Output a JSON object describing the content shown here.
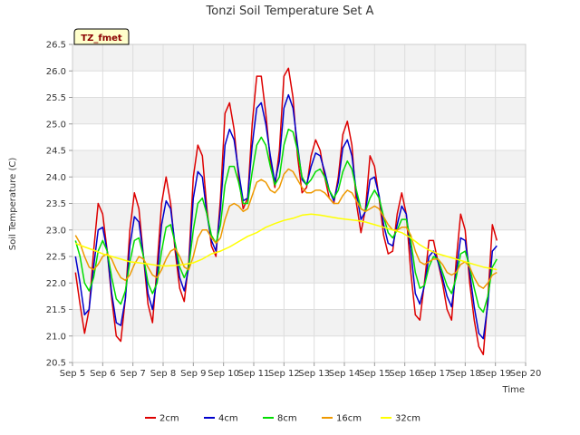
{
  "chart_data": {
    "type": "line",
    "title": "Tonzi Soil Temperature Set A",
    "xlabel": "Time",
    "ylabel": "Soil Temperature (C)",
    "tag": "TZ_fmet",
    "xlim": [
      5,
      20
    ],
    "ylim": [
      20.5,
      26.5
    ],
    "x_ticks": [
      5,
      6,
      7,
      8,
      9,
      10,
      11,
      12,
      13,
      14,
      15,
      16,
      17,
      18,
      19,
      20
    ],
    "x_tick_labels": [
      "Sep 5",
      "Sep 6",
      "Sep 7",
      "Sep 8",
      "Sep 9",
      "Sep 10",
      "Sep 11",
      "Sep 12",
      "Sep 13",
      "Sep 14",
      "Sep 15",
      "Sep 16",
      "Sep 17",
      "Sep 18",
      "Sep 19",
      "Sep 20"
    ],
    "y_ticks": [
      20.5,
      21.0,
      21.5,
      22.0,
      22.5,
      23.0,
      23.5,
      24.0,
      24.5,
      25.0,
      25.5,
      26.0,
      26.5
    ],
    "y_tick_labels": [
      "20.5",
      "21.0",
      "21.5",
      "22.0",
      "22.5",
      "23.0",
      "23.5",
      "24.0",
      "24.5",
      "25.0",
      "25.5",
      "26.0",
      "26.5"
    ],
    "grid": true,
    "legend_position": "bottom",
    "series": [
      {
        "name": "2cm",
        "color": "#dd0000",
        "x": [
          5.1,
          5.25,
          5.4,
          5.55,
          5.7,
          5.85,
          6.0,
          6.15,
          6.3,
          6.45,
          6.6,
          6.75,
          6.9,
          7.05,
          7.2,
          7.35,
          7.5,
          7.65,
          7.8,
          7.95,
          8.1,
          8.25,
          8.4,
          8.55,
          8.7,
          8.85,
          9.0,
          9.15,
          9.3,
          9.45,
          9.6,
          9.75,
          9.9,
          10.05,
          10.2,
          10.35,
          10.5,
          10.65,
          10.8,
          10.95,
          11.1,
          11.25,
          11.4,
          11.55,
          11.7,
          11.85,
          12.0,
          12.15,
          12.3,
          12.45,
          12.6,
          12.75,
          12.9,
          13.05,
          13.2,
          13.35,
          13.5,
          13.65,
          13.8,
          13.95,
          14.1,
          14.25,
          14.4,
          14.55,
          14.7,
          14.85,
          15.0,
          15.15,
          15.3,
          15.45,
          15.6,
          15.75,
          15.9,
          16.05,
          16.2,
          16.35,
          16.5,
          16.65,
          16.8,
          16.95,
          17.1,
          17.25,
          17.4,
          17.55,
          17.7,
          17.85,
          18.0,
          18.15,
          18.3,
          18.45,
          18.6,
          18.75,
          18.9,
          19.05
        ],
        "y": [
          22.2,
          21.6,
          21.05,
          21.5,
          22.6,
          23.5,
          23.3,
          22.6,
          21.7,
          21.0,
          20.9,
          21.7,
          23.0,
          23.7,
          23.4,
          22.5,
          21.6,
          21.25,
          22.3,
          23.5,
          24.0,
          23.5,
          22.6,
          21.9,
          21.65,
          22.4,
          24.0,
          24.6,
          24.4,
          23.4,
          22.7,
          22.5,
          23.6,
          25.2,
          25.4,
          24.9,
          24.0,
          23.4,
          23.6,
          25.0,
          25.9,
          25.9,
          25.2,
          24.3,
          23.8,
          24.5,
          25.9,
          26.05,
          25.5,
          24.4,
          23.7,
          23.8,
          24.4,
          24.7,
          24.5,
          24.0,
          23.6,
          23.5,
          24.0,
          24.8,
          25.05,
          24.6,
          23.5,
          22.95,
          23.4,
          24.4,
          24.2,
          23.6,
          22.9,
          22.55,
          22.6,
          23.3,
          23.7,
          23.3,
          22.2,
          21.4,
          21.3,
          22.0,
          22.8,
          22.8,
          22.4,
          22.0,
          21.5,
          21.3,
          22.4,
          23.3,
          23.0,
          22.0,
          21.3,
          20.8,
          20.65,
          21.7,
          23.1,
          22.8
        ]
      },
      {
        "name": "4cm",
        "color": "#0000cc",
        "x": [
          5.1,
          5.25,
          5.4,
          5.55,
          5.7,
          5.85,
          6.0,
          6.15,
          6.3,
          6.45,
          6.6,
          6.75,
          6.9,
          7.05,
          7.2,
          7.35,
          7.5,
          7.65,
          7.8,
          7.95,
          8.1,
          8.25,
          8.4,
          8.55,
          8.7,
          8.85,
          9.0,
          9.15,
          9.3,
          9.45,
          9.6,
          9.75,
          9.9,
          10.05,
          10.2,
          10.35,
          10.5,
          10.65,
          10.8,
          10.95,
          11.1,
          11.25,
          11.4,
          11.55,
          11.7,
          11.85,
          12.0,
          12.15,
          12.3,
          12.45,
          12.6,
          12.75,
          12.9,
          13.05,
          13.2,
          13.35,
          13.5,
          13.65,
          13.8,
          13.95,
          14.1,
          14.25,
          14.4,
          14.55,
          14.7,
          14.85,
          15.0,
          15.15,
          15.3,
          15.45,
          15.6,
          15.75,
          15.9,
          16.05,
          16.2,
          16.35,
          16.5,
          16.65,
          16.8,
          16.95,
          17.1,
          17.25,
          17.4,
          17.55,
          17.7,
          17.85,
          18.0,
          18.15,
          18.3,
          18.45,
          18.6,
          18.75,
          18.9,
          19.05
        ],
        "y": [
          22.5,
          22.0,
          21.4,
          21.5,
          22.3,
          23.0,
          23.05,
          22.6,
          21.8,
          21.25,
          21.2,
          21.7,
          22.7,
          23.25,
          23.15,
          22.5,
          21.8,
          21.5,
          22.1,
          23.1,
          23.55,
          23.4,
          22.7,
          22.1,
          21.85,
          22.3,
          23.6,
          24.1,
          24.0,
          23.3,
          22.8,
          22.6,
          23.4,
          24.6,
          24.9,
          24.7,
          24.1,
          23.55,
          23.6,
          24.6,
          25.3,
          25.4,
          25.0,
          24.4,
          23.9,
          24.3,
          25.3,
          25.55,
          25.3,
          24.6,
          23.95,
          23.85,
          24.2,
          24.45,
          24.4,
          24.1,
          23.75,
          23.55,
          23.9,
          24.55,
          24.7,
          24.4,
          23.7,
          23.2,
          23.35,
          23.95,
          24.0,
          23.65,
          23.1,
          22.75,
          22.7,
          23.1,
          23.45,
          23.3,
          22.6,
          21.8,
          21.6,
          21.95,
          22.5,
          22.6,
          22.4,
          22.1,
          21.75,
          21.55,
          22.2,
          22.85,
          22.8,
          22.2,
          21.55,
          21.05,
          20.95,
          21.6,
          22.6,
          22.7
        ]
      },
      {
        "name": "8cm",
        "color": "#00dd00",
        "x": [
          5.1,
          5.25,
          5.4,
          5.55,
          5.7,
          5.85,
          6.0,
          6.15,
          6.3,
          6.45,
          6.6,
          6.75,
          6.9,
          7.05,
          7.2,
          7.35,
          7.5,
          7.65,
          7.8,
          7.95,
          8.1,
          8.25,
          8.4,
          8.55,
          8.7,
          8.85,
          9.0,
          9.15,
          9.3,
          9.45,
          9.6,
          9.75,
          9.9,
          10.05,
          10.2,
          10.35,
          10.5,
          10.65,
          10.8,
          10.95,
          11.1,
          11.25,
          11.4,
          11.55,
          11.7,
          11.85,
          12.0,
          12.15,
          12.3,
          12.45,
          12.6,
          12.75,
          12.9,
          13.05,
          13.2,
          13.35,
          13.5,
          13.65,
          13.8,
          13.95,
          14.1,
          14.25,
          14.4,
          14.55,
          14.7,
          14.85,
          15.0,
          15.15,
          15.3,
          15.45,
          15.6,
          15.75,
          15.9,
          16.05,
          16.2,
          16.35,
          16.5,
          16.65,
          16.8,
          16.95,
          17.1,
          17.25,
          17.4,
          17.55,
          17.7,
          17.85,
          18.0,
          18.15,
          18.3,
          18.45,
          18.6,
          18.75,
          18.9,
          19.05
        ],
        "y": [
          22.8,
          22.5,
          22.0,
          21.85,
          22.1,
          22.6,
          22.8,
          22.6,
          22.1,
          21.7,
          21.6,
          21.85,
          22.4,
          22.8,
          22.85,
          22.5,
          22.0,
          21.8,
          22.0,
          22.6,
          23.05,
          23.1,
          22.75,
          22.3,
          22.1,
          22.3,
          23.0,
          23.5,
          23.6,
          23.3,
          22.9,
          22.75,
          23.1,
          23.85,
          24.2,
          24.2,
          23.9,
          23.5,
          23.5,
          24.1,
          24.6,
          24.75,
          24.6,
          24.2,
          23.85,
          24.0,
          24.6,
          24.9,
          24.85,
          24.5,
          24.0,
          23.85,
          23.95,
          24.1,
          24.15,
          24.0,
          23.75,
          23.6,
          23.75,
          24.1,
          24.3,
          24.15,
          23.75,
          23.4,
          23.35,
          23.6,
          23.75,
          23.6,
          23.25,
          22.95,
          22.85,
          23.0,
          23.2,
          23.2,
          22.8,
          22.2,
          21.9,
          21.95,
          22.3,
          22.5,
          22.45,
          22.2,
          21.95,
          21.8,
          22.1,
          22.55,
          22.6,
          22.3,
          21.9,
          21.55,
          21.45,
          21.75,
          22.3,
          22.45
        ]
      },
      {
        "name": "16cm",
        "color": "#ee9900",
        "x": [
          5.1,
          5.25,
          5.4,
          5.55,
          5.7,
          5.85,
          6.0,
          6.15,
          6.3,
          6.45,
          6.6,
          6.75,
          6.9,
          7.05,
          7.2,
          7.35,
          7.5,
          7.65,
          7.8,
          7.95,
          8.1,
          8.25,
          8.4,
          8.55,
          8.7,
          8.85,
          9.0,
          9.15,
          9.3,
          9.45,
          9.6,
          9.75,
          9.9,
          10.05,
          10.2,
          10.35,
          10.5,
          10.65,
          10.8,
          10.95,
          11.1,
          11.25,
          11.4,
          11.55,
          11.7,
          11.85,
          12.0,
          12.15,
          12.3,
          12.45,
          12.6,
          12.75,
          12.9,
          13.05,
          13.2,
          13.35,
          13.5,
          13.65,
          13.8,
          13.95,
          14.1,
          14.25,
          14.4,
          14.55,
          14.7,
          14.85,
          15.0,
          15.15,
          15.3,
          15.45,
          15.6,
          15.75,
          15.9,
          16.05,
          16.2,
          16.35,
          16.5,
          16.65,
          16.8,
          16.95,
          17.1,
          17.25,
          17.4,
          17.55,
          17.7,
          17.85,
          18.0,
          18.15,
          18.3,
          18.45,
          18.6,
          18.75,
          18.9,
          19.05
        ],
        "y": [
          22.9,
          22.75,
          22.5,
          22.3,
          22.25,
          22.35,
          22.5,
          22.55,
          22.45,
          22.25,
          22.1,
          22.05,
          22.15,
          22.35,
          22.5,
          22.45,
          22.3,
          22.15,
          22.1,
          22.25,
          22.45,
          22.6,
          22.65,
          22.5,
          22.3,
          22.25,
          22.5,
          22.85,
          23.0,
          23.0,
          22.85,
          22.75,
          22.85,
          23.2,
          23.45,
          23.5,
          23.45,
          23.35,
          23.4,
          23.65,
          23.9,
          23.95,
          23.9,
          23.75,
          23.7,
          23.8,
          24.05,
          24.15,
          24.1,
          23.95,
          23.8,
          23.7,
          23.7,
          23.75,
          23.75,
          23.7,
          23.6,
          23.5,
          23.5,
          23.65,
          23.75,
          23.7,
          23.55,
          23.4,
          23.35,
          23.4,
          23.45,
          23.4,
          23.25,
          23.1,
          23.0,
          23.0,
          23.05,
          23.05,
          22.9,
          22.6,
          22.4,
          22.35,
          22.4,
          22.45,
          22.45,
          22.35,
          22.2,
          22.15,
          22.2,
          22.35,
          22.4,
          22.3,
          22.1,
          21.95,
          21.9,
          22.0,
          22.15,
          22.2
        ]
      },
      {
        "name": "32cm",
        "color": "#ffff00",
        "x": [
          5.1,
          5.4,
          5.7,
          6.0,
          6.3,
          6.6,
          6.9,
          7.2,
          7.5,
          7.8,
          8.1,
          8.4,
          8.7,
          9.0,
          9.3,
          9.6,
          9.9,
          10.2,
          10.5,
          10.8,
          11.1,
          11.4,
          11.7,
          12.0,
          12.3,
          12.6,
          12.9,
          13.2,
          13.5,
          13.8,
          14.1,
          14.4,
          14.7,
          15.0,
          15.3,
          15.6,
          15.9,
          16.2,
          16.5,
          16.8,
          17.1,
          17.4,
          17.7,
          18.0,
          18.3,
          18.6,
          18.9,
          19.05
        ],
        "y": [
          22.75,
          22.68,
          22.62,
          22.55,
          22.5,
          22.45,
          22.4,
          22.38,
          22.36,
          22.33,
          22.32,
          22.33,
          22.35,
          22.38,
          22.45,
          22.55,
          22.6,
          22.68,
          22.78,
          22.88,
          22.95,
          23.05,
          23.12,
          23.18,
          23.22,
          23.28,
          23.3,
          23.28,
          23.25,
          23.22,
          23.2,
          23.18,
          23.15,
          23.1,
          23.05,
          23.0,
          22.95,
          22.85,
          22.72,
          22.62,
          22.55,
          22.5,
          22.45,
          22.4,
          22.35,
          22.3,
          22.27,
          22.25
        ]
      }
    ]
  }
}
